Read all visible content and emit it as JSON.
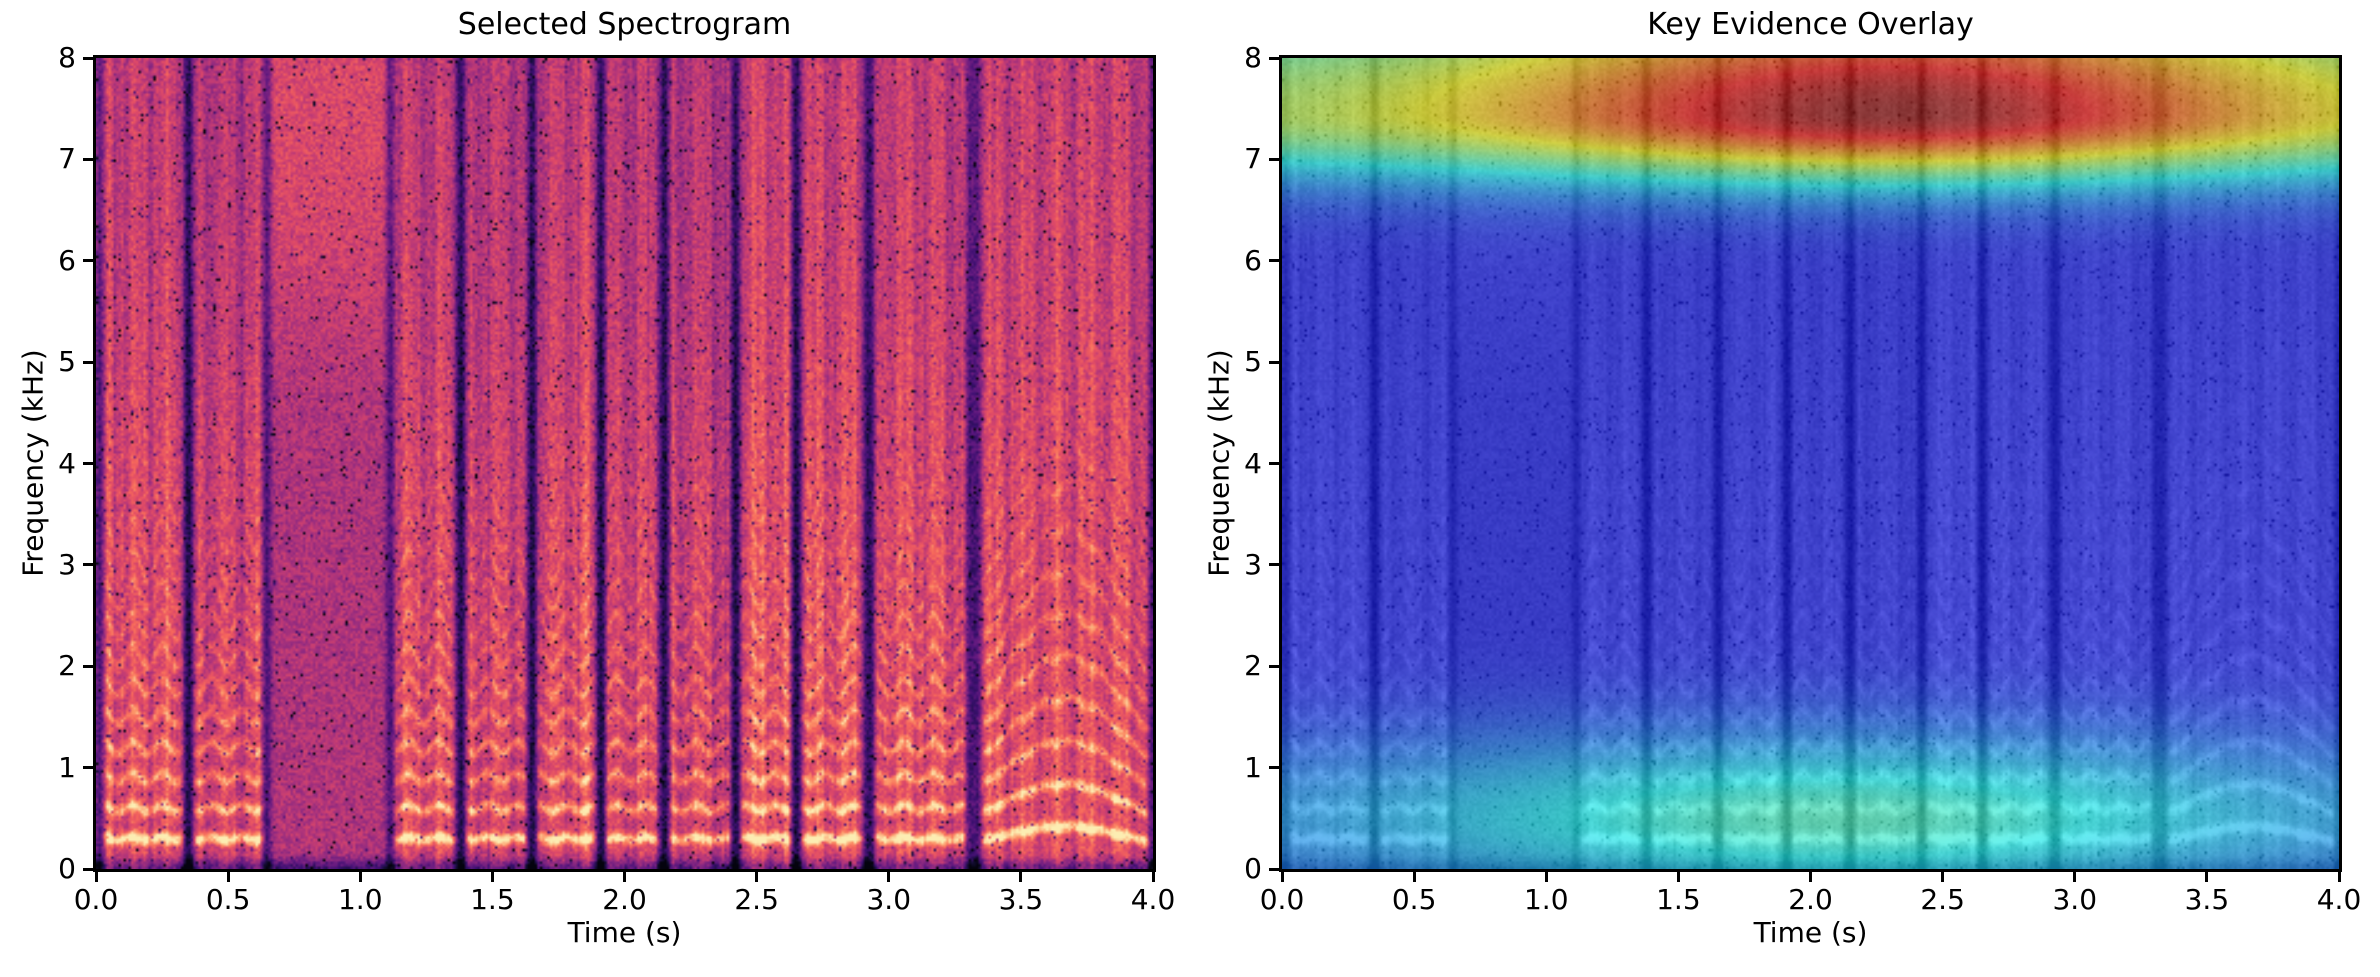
{
  "figure": {
    "background": "#ffffff"
  },
  "chart_data": [
    {
      "type": "heatmap",
      "panel": "left",
      "title": "Selected Spectrogram",
      "xlabel": "Time (s)",
      "ylabel": "Frequency (kHz)",
      "xlim": [
        0,
        4
      ],
      "ylim": [
        0,
        8
      ],
      "x_ticks": [
        "0.0",
        "0.5",
        "1.0",
        "1.5",
        "2.0",
        "2.5",
        "3.0",
        "3.5",
        "4.0"
      ],
      "y_ticks": [
        "0",
        "1",
        "2",
        "3",
        "4",
        "5",
        "6",
        "7",
        "8"
      ],
      "colormap": "magma",
      "description": "Speech spectrogram: bright harmonic stacks below ~5 kHz, very bright fundamental near 0.3 kHz, silent pause at ~0.65-1.12 s, narrow dark gaps between syllables, rising-falling harmonic arcs in the final syllable (~3.35-3.98 s).",
      "signal": {
        "segments": [
          [
            0.03,
            0.33
          ],
          [
            0.37,
            0.63
          ],
          [
            1.13,
            1.36
          ],
          [
            1.4,
            1.63
          ],
          [
            1.67,
            1.89
          ],
          [
            1.93,
            2.13
          ],
          [
            2.17,
            2.4
          ],
          [
            2.44,
            2.63
          ],
          [
            2.67,
            2.9
          ],
          [
            2.95,
            3.29
          ],
          [
            3.35,
            3.98
          ]
        ],
        "arc_segment_index": 10,
        "f0_khz": 0.3,
        "arc_rise_khz": 0.14,
        "harmonic_width_khz": 0.055,
        "harmonic_decay_khz": 2.6,
        "harmonic_gain": 0.36,
        "harmonic_cutoff_khz": 5.2,
        "voiced_level": 0.64,
        "pause_level": 0.49,
        "pause_highfreq_boost": 0.13,
        "noise_amp": 0.16,
        "pepper_prob": 0.03,
        "chevron_rate_hz": 9.0,
        "chevron_depth": 0.05,
        "am_rate_hz": 8.3,
        "edge_dip_strength": 0.5,
        "edge_dip_sigma_s": 0.018
      }
    },
    {
      "type": "heatmap",
      "panel": "right",
      "title": "Key Evidence Overlay",
      "xlabel": "Time (s)",
      "ylabel": "Frequency (kHz)",
      "xlim": [
        0,
        4
      ],
      "ylim": [
        0,
        8
      ],
      "x_ticks": [
        "0.0",
        "0.5",
        "1.0",
        "1.5",
        "2.0",
        "2.5",
        "3.0",
        "3.5",
        "4.0"
      ],
      "y_ticks": [
        "0",
        "1",
        "2",
        "3",
        "4",
        "5",
        "6",
        "7",
        "8"
      ],
      "colormap": "jet saliency over grayscale spectrogram",
      "description": "Same spectrogram rendered grayscale with a jet-colored evidence heatmap: strongest (dark red) band at ~7.2-7.6 kHz peaking around t=1.8-3.2 s, fading to yellow/green/cyan toward the panel edges and to blue below ~6.3 kHz; a secondary cyan-teal evidence region at 0-1 kHz around t=1.1-3.0 s; dark blue elsewhere.",
      "overlay": {
        "alpha": 0.55,
        "base_value": 0.13,
        "gray_offset": 0.12,
        "gray_scale": 0.78,
        "bands": [
          {
            "f_center_khz": 7.45,
            "sigma_below": 0.45,
            "sigma_above": 0.9,
            "gain": 0.85,
            "t_center": 2.3,
            "t_sigma": 1.05,
            "t_floor": 0.45
          },
          {
            "f_center_khz": 0.5,
            "sigma_below": 0.6,
            "sigma_above": 0.6,
            "gain": 0.3,
            "t_center": 2.1,
            "t_sigma": 1.15,
            "t_floor": 0.35
          }
        ]
      }
    }
  ]
}
